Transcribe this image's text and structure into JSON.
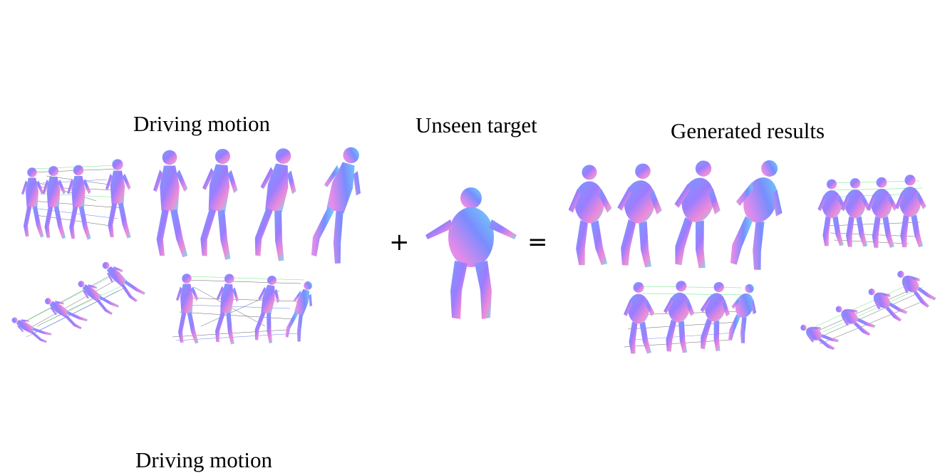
{
  "figure": {
    "labels": {
      "driving": "Driving motion",
      "target": "Unseen target",
      "results": "Generated results",
      "cut_off": "Driving motion"
    },
    "operators": {
      "plus": "+",
      "equals": "="
    },
    "colors": {
      "mesh_blue": "#6f8cff",
      "mesh_pink": "#f08ad8",
      "mesh_cyan": "#6fe0f0",
      "corr_green": "#40e060",
      "corr_black": "#202020",
      "corr_blue": "#2040ff"
    }
  }
}
